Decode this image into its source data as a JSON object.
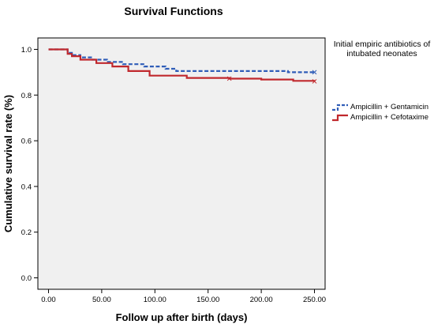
{
  "chart_data": {
    "type": "line",
    "title": "Survival Functions",
    "xlabel": "Follow up after birth (days)",
    "ylabel": "Cumulative survival rate (%)",
    "xlim": [
      -10,
      260
    ],
    "ylim": [
      -0.05,
      1.05
    ],
    "xticks": [
      0,
      50,
      100,
      150,
      200,
      250
    ],
    "xtick_labels": [
      "0.00",
      "50.00",
      "100.00",
      "150.00",
      "200.00",
      "250.00"
    ],
    "yticks": [
      0,
      0.2,
      0.4,
      0.6,
      0.8,
      1.0
    ],
    "ytick_labels": [
      "0.0",
      "0.2",
      "0.4",
      "0.6",
      "0.8",
      "1.0"
    ],
    "grid": false,
    "legend_position": "right",
    "legend_title": "Initial empiric antibiotics of intubated neonates",
    "series": [
      {
        "name": "Ampicillin + Gentamicin",
        "color": "#2f5db8",
        "dash": true,
        "x": [
          0,
          15,
          18,
          22,
          30,
          40,
          55,
          70,
          90,
          110,
          120,
          170,
          200,
          225,
          250
        ],
        "y": [
          1.0,
          1.0,
          0.985,
          0.975,
          0.965,
          0.955,
          0.945,
          0.935,
          0.925,
          0.915,
          0.905,
          0.905,
          0.905,
          0.9,
          0.9
        ]
      },
      {
        "name": "Ampicillin + Cefotaxime",
        "color": "#c0282d",
        "dash": false,
        "x": [
          0,
          15,
          18,
          22,
          30,
          45,
          60,
          75,
          95,
          130,
          170,
          200,
          230,
          250
        ],
        "y": [
          1.0,
          1.0,
          0.98,
          0.97,
          0.955,
          0.94,
          0.925,
          0.905,
          0.885,
          0.875,
          0.872,
          0.868,
          0.862,
          0.86
        ]
      }
    ],
    "censor_markers": [
      {
        "series": "Ampicillin + Cefotaxime",
        "x": 170,
        "y": 0.872
      },
      {
        "series": "Ampicillin + Cefotaxime",
        "x": 250,
        "y": 0.86
      },
      {
        "series": "Ampicillin + Gentamicin",
        "x": 250,
        "y": 0.9
      }
    ]
  }
}
